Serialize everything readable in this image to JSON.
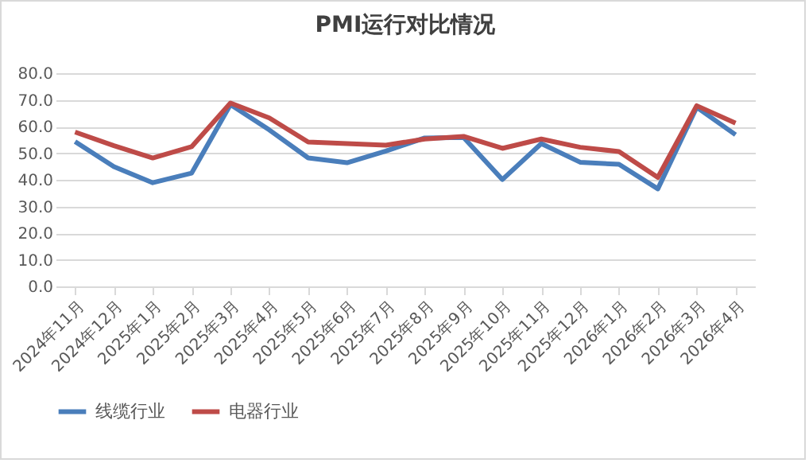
{
  "chart_data": {
    "type": "line",
    "title": "PMI运行对比情况",
    "categories": [
      "2024年11月",
      "2024年12月",
      "2025年1月",
      "2025年2月",
      "2025年3月",
      "2025年4月",
      "2025年5月",
      "2025年6月",
      "2025年7月",
      "2025年8月",
      "2025年9月",
      "2025年10月",
      "2025年11月",
      "2025年12月",
      "2026年1月",
      "2026年2月",
      "2026年3月",
      "2026年4月"
    ],
    "series": [
      {
        "name": "线缆行业",
        "color": "#4a7ebb",
        "values": [
          54.3,
          44.9,
          38.9,
          42.5,
          68.2,
          58.7,
          48.2,
          46.4,
          50.8,
          55.7,
          55.9,
          40.1,
          53.6,
          46.6,
          45.8,
          36.6,
          67.2,
          56.9
        ]
      },
      {
        "name": "电器行业",
        "color": "#be4b48",
        "values": [
          57.9,
          52.8,
          48.2,
          52.4,
          68.8,
          63.2,
          54.2,
          53.6,
          53.0,
          55.3,
          56.3,
          51.8,
          55.3,
          52.2,
          50.6,
          40.9,
          67.8,
          61.3
        ]
      }
    ],
    "ylim": [
      0,
      80
    ],
    "yticks": [
      {
        "value": 0,
        "label": "0.0"
      },
      {
        "value": 10,
        "label": "10.0"
      },
      {
        "value": 20,
        "label": "20.0"
      },
      {
        "value": 30,
        "label": "30.0"
      },
      {
        "value": 40,
        "label": "40.0"
      },
      {
        "value": 50,
        "label": "50.0"
      },
      {
        "value": 60,
        "label": "60.0"
      },
      {
        "value": 70,
        "label": "70.0"
      },
      {
        "value": 80,
        "label": "80.0"
      }
    ],
    "grid": "y",
    "legend": "bottom",
    "marker": "none",
    "line_style": "solid"
  }
}
